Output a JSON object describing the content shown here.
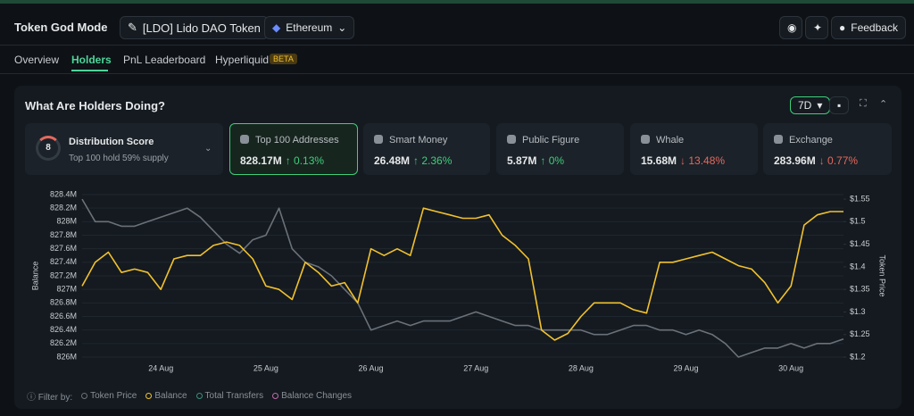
{
  "header": {
    "title": "Token God Mode",
    "token": "[LDO] Lido DAO Token",
    "chain": "Ethereum",
    "feedback": "Feedback"
  },
  "tabs": [
    {
      "label": "Overview"
    },
    {
      "label": "Holders"
    },
    {
      "label": "PnL Leaderboard"
    },
    {
      "label": "Hyperliquid",
      "badge": "BETA"
    }
  ],
  "panel": {
    "title": "What Are Holders Doing?",
    "range": "7D"
  },
  "distribution": {
    "score": "8",
    "title": "Distribution Score",
    "subtitle": "Top 100 hold 59% supply"
  },
  "cards": [
    {
      "label": "Top 100 Addresses",
      "value": "828.17M",
      "change": "↑ 0.13%"
    },
    {
      "label": "Smart Money",
      "value": "26.48M",
      "change": "↑ 2.36%"
    },
    {
      "label": "Public Figure",
      "value": "5.87M",
      "change": "↑ 0%"
    },
    {
      "label": "Whale",
      "value": "15.68M",
      "change": "↓ 13.48%"
    },
    {
      "label": "Exchange",
      "value": "283.96M",
      "change": "↓ 0.77%"
    }
  ],
  "chart_data": {
    "type": "line",
    "y_label": "Balance",
    "y2_label": "Token Price",
    "categories": [
      null,
      null,
      null,
      null,
      null,
      null,
      "24 Aug",
      null,
      null,
      null,
      null,
      null,
      null,
      null,
      "25 Aug",
      null,
      null,
      null,
      null,
      null,
      null,
      null,
      "26 Aug",
      null,
      null,
      null,
      null,
      null,
      null,
      null,
      "27 Aug",
      null,
      null,
      null,
      null,
      null,
      null,
      null,
      "28 Aug",
      null,
      null,
      null,
      null,
      null,
      null,
      null,
      "29 Aug",
      null,
      null,
      null,
      null,
      null,
      null,
      null,
      "30 Aug",
      null,
      null,
      null,
      null
    ],
    "series": [
      {
        "name": "Token Price",
        "color": "#6b7178",
        "axis": "y2",
        "values": [
          1.55,
          1.5,
          1.5,
          1.49,
          1.49,
          1.5,
          1.51,
          1.52,
          1.53,
          1.51,
          1.48,
          1.45,
          1.43,
          1.46,
          1.47,
          1.53,
          1.44,
          1.41,
          1.4,
          1.38,
          1.35,
          1.32,
          1.26,
          1.27,
          1.28,
          1.27,
          1.28,
          1.28,
          1.28,
          1.29,
          1.3,
          1.29,
          1.28,
          1.27,
          1.27,
          1.26,
          1.26,
          1.26,
          1.26,
          1.25,
          1.25,
          1.26,
          1.27,
          1.27,
          1.26,
          1.26,
          1.25,
          1.26,
          1.25,
          1.23,
          1.2,
          1.21,
          1.22,
          1.22,
          1.23,
          1.22,
          1.23,
          1.23,
          1.24
        ]
      },
      {
        "name": "Balance",
        "color": "#f2c12e",
        "values": [
          827.05,
          827.4,
          827.55,
          827.25,
          827.3,
          827.25,
          827.0,
          827.45,
          827.5,
          827.5,
          827.65,
          827.7,
          827.65,
          827.45,
          827.05,
          827.0,
          826.85,
          827.4,
          827.25,
          827.05,
          827.1,
          826.8,
          827.6,
          827.5,
          827.6,
          827.5,
          828.2,
          828.15,
          828.1,
          828.05,
          828.05,
          828.1,
          827.8,
          827.65,
          827.45,
          826.4,
          826.25,
          826.35,
          826.6,
          826.8,
          826.8,
          826.8,
          826.7,
          826.65,
          827.4,
          827.4,
          827.45,
          827.5,
          827.55,
          827.45,
          827.35,
          827.3,
          827.1,
          826.8,
          827.05,
          827.95,
          828.1,
          828.15,
          828.15
        ]
      }
    ],
    "other_filters": [
      {
        "name": "Total Transfers",
        "color": "#3d8f7a"
      },
      {
        "name": "Balance Changes",
        "color": "#c06aa8"
      }
    ],
    "filter_label": "Filter by:",
    "ylim": [
      826,
      828.4
    ],
    "yticks": [
      {
        "value": 826,
        "label": "826M"
      },
      {
        "value": 826.2,
        "label": "826.2M"
      },
      {
        "value": 826.4,
        "label": "826.4M"
      },
      {
        "value": 826.6,
        "label": "826.6M"
      },
      {
        "value": 826.8,
        "label": "826.8M"
      },
      {
        "value": 827,
        "label": "827M"
      },
      {
        "value": 827.2,
        "label": "827.2M"
      },
      {
        "value": 827.4,
        "label": "827.4M"
      },
      {
        "value": 827.6,
        "label": "827.6M"
      },
      {
        "value": 827.8,
        "label": "827.8M"
      },
      {
        "value": 828,
        "label": "828M"
      },
      {
        "value": 828.2,
        "label": "828.2M"
      },
      {
        "value": 828.4,
        "label": "828.4M"
      }
    ],
    "y2lim": [
      1.2,
      1.56
    ],
    "y2ticks": [
      {
        "value": 1.2,
        "label": "$1.2"
      },
      {
        "value": 1.25,
        "label": "$1.25"
      },
      {
        "value": 1.3,
        "label": "$1.3"
      },
      {
        "value": 1.35,
        "label": "$1.35"
      },
      {
        "value": 1.4,
        "label": "$1.4"
      },
      {
        "value": 1.45,
        "label": "$1.45"
      },
      {
        "value": 1.5,
        "label": "$1.5"
      },
      {
        "value": 1.55,
        "label": "$1.55"
      }
    ],
    "grid": true
  }
}
